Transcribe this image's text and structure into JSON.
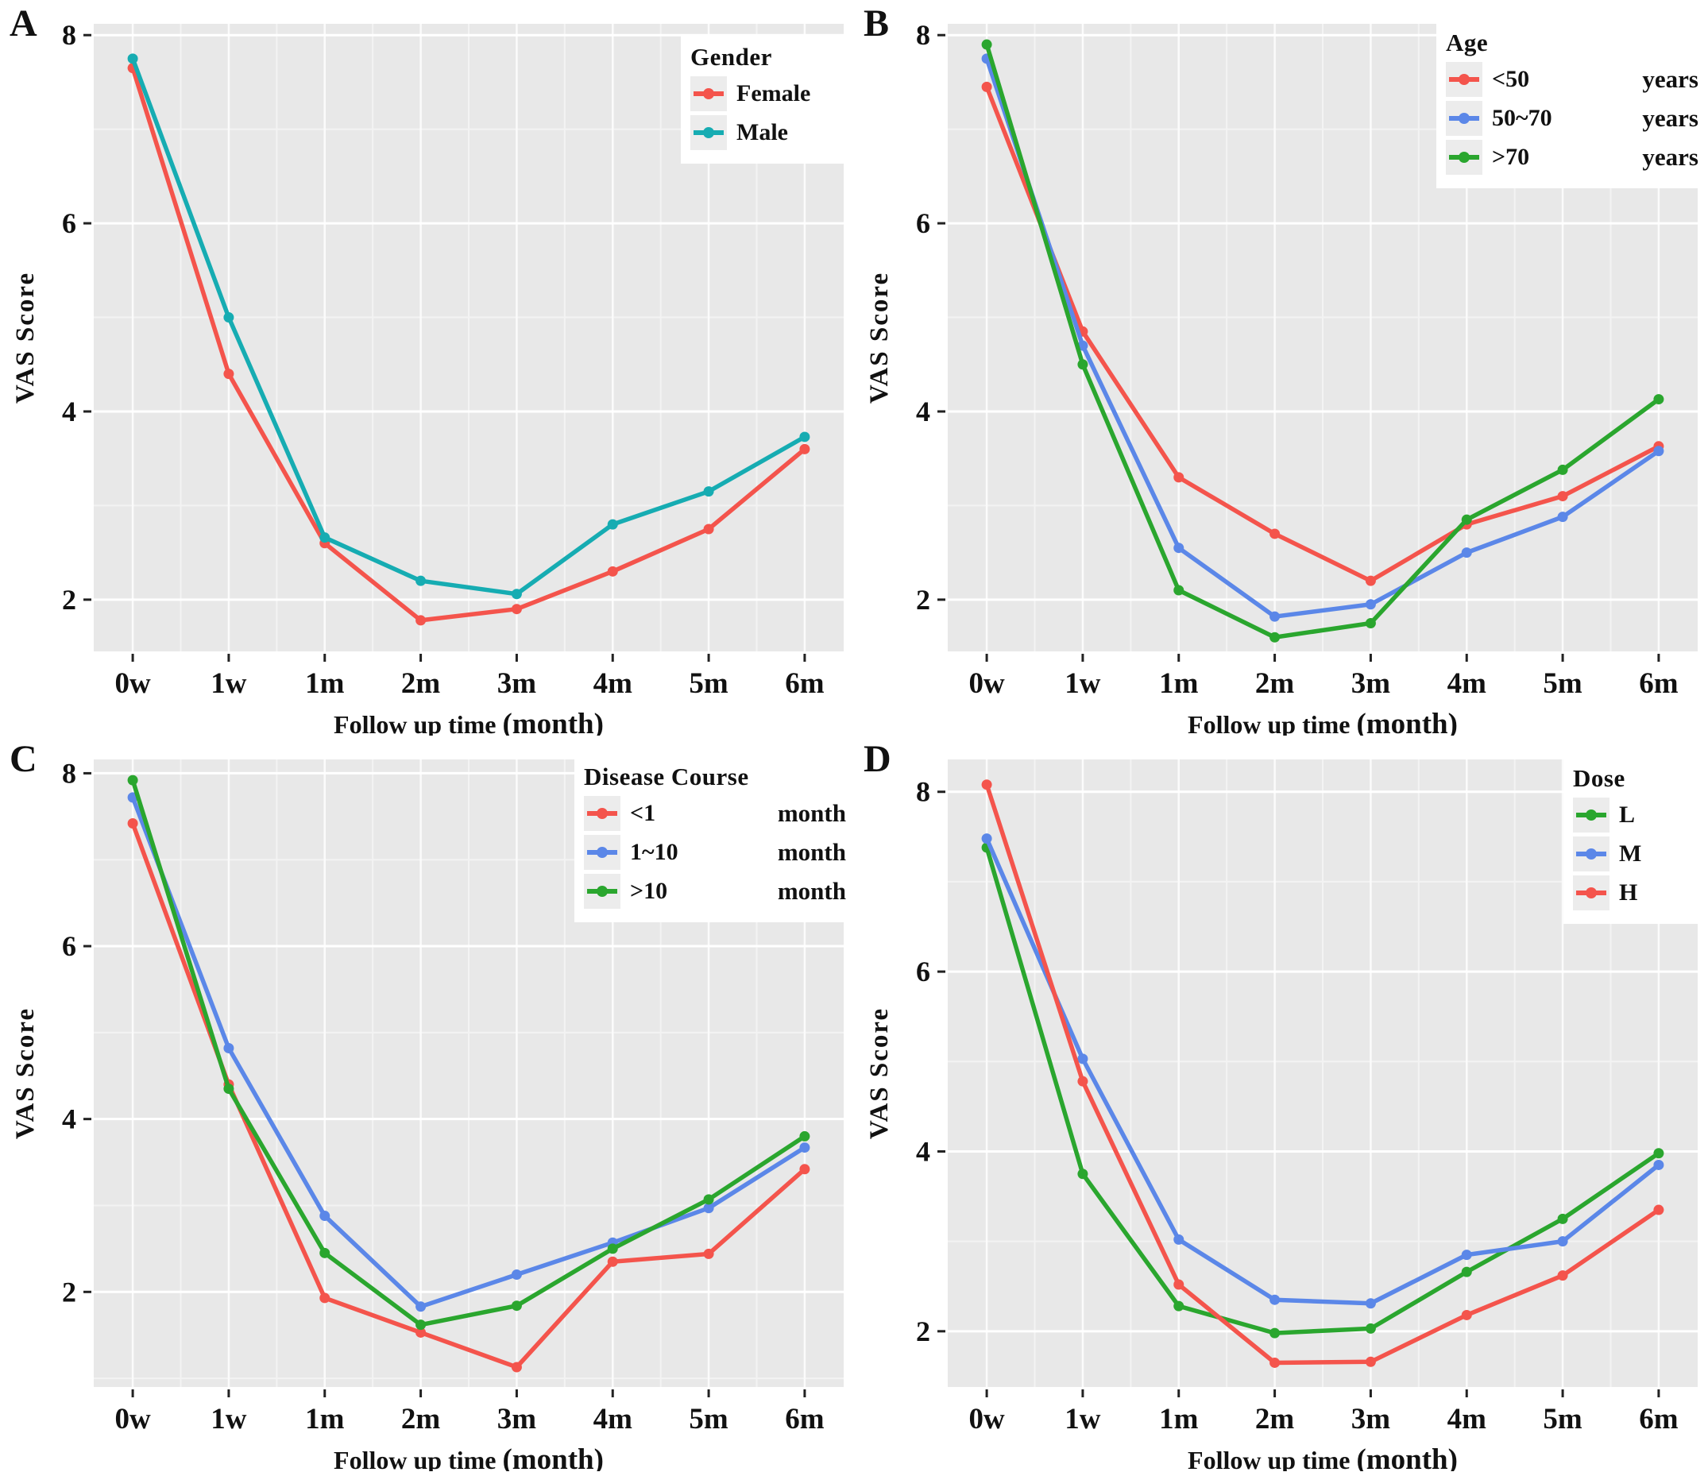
{
  "chart_data": [
    {
      "type": "line",
      "panel_label": "A",
      "legend_title": "Gender",
      "categories": [
        "0w",
        "1w",
        "1m",
        "2m",
        "3m",
        "4m",
        "5m",
        "6m"
      ],
      "xlabel": "Follow up time",
      "xlabel_unit": "(month)",
      "ylabel": "VAS Score",
      "y_ticks": [
        2,
        4,
        6,
        8
      ],
      "y_minor_ticks": [
        1,
        3,
        5,
        7
      ],
      "ylim": [
        1.45,
        8.12
      ],
      "grid": true,
      "legend_position": "top-right",
      "series": [
        {
          "name": "Female",
          "unit": "",
          "color": "#F4544C",
          "values": [
            7.65,
            4.4,
            2.6,
            1.78,
            1.9,
            2.3,
            2.75,
            3.6
          ]
        },
        {
          "name": "Male",
          "unit": "",
          "color": "#16ACB2",
          "values": [
            7.75,
            5.0,
            2.66,
            2.2,
            2.06,
            2.8,
            3.15,
            3.73
          ]
        }
      ]
    },
    {
      "type": "line",
      "panel_label": "B",
      "legend_title": "Age",
      "categories": [
        "0w",
        "1w",
        "1m",
        "2m",
        "3m",
        "4m",
        "5m",
        "6m"
      ],
      "xlabel": "Follow up time",
      "xlabel_unit": "(month)",
      "ylabel": "VAS Score",
      "y_ticks": [
        2,
        4,
        6,
        8
      ],
      "y_minor_ticks": [
        1,
        3,
        5,
        7
      ],
      "ylim": [
        1.45,
        8.12
      ],
      "grid": true,
      "legend_position": "top-right",
      "series": [
        {
          "name": "<50",
          "unit": "years",
          "color": "#F4544C",
          "values": [
            7.45,
            4.85,
            3.3,
            2.7,
            2.2,
            2.8,
            3.1,
            3.63
          ]
        },
        {
          "name": "50~70",
          "unit": "years",
          "color": "#5B87E8",
          "values": [
            7.75,
            4.7,
            2.55,
            1.82,
            1.95,
            2.5,
            2.88,
            3.58
          ]
        },
        {
          "name": ">70",
          "unit": "years",
          "color": "#2AA62E",
          "values": [
            7.9,
            4.5,
            2.1,
            1.6,
            1.75,
            2.85,
            3.38,
            4.13
          ]
        }
      ]
    },
    {
      "type": "line",
      "panel_label": "C",
      "legend_title": "Disease Course",
      "categories": [
        "0w",
        "1w",
        "1m",
        "2m",
        "3m",
        "4m",
        "5m",
        "6m"
      ],
      "xlabel": "Follow up time",
      "xlabel_unit": "(month)",
      "ylabel": "VAS Score",
      "y_ticks": [
        2,
        4,
        6,
        8
      ],
      "y_minor_ticks": [
        1,
        3,
        5,
        7
      ],
      "ylim": [
        0.9,
        8.16
      ],
      "grid": true,
      "legend_position": "top-right",
      "series": [
        {
          "name": "<1",
          "unit": "month",
          "color": "#F4544C",
          "values": [
            7.42,
            4.4,
            1.93,
            1.53,
            1.13,
            2.35,
            2.44,
            3.42
          ]
        },
        {
          "name": "1~10",
          "unit": "month",
          "color": "#5B87E8",
          "values": [
            7.72,
            4.82,
            2.88,
            1.83,
            2.2,
            2.57,
            2.97,
            3.67
          ]
        },
        {
          "name": ">10",
          "unit": "month",
          "color": "#2AA62E",
          "values": [
            7.92,
            4.35,
            2.45,
            1.62,
            1.84,
            2.5,
            3.07,
            3.8
          ]
        }
      ]
    },
    {
      "type": "line",
      "panel_label": "D",
      "legend_title": "Dose",
      "categories": [
        "0w",
        "1w",
        "1m",
        "2m",
        "3m",
        "4m",
        "5m",
        "6m"
      ],
      "xlabel": "Follow up time",
      "xlabel_unit": "(month)",
      "ylabel": "VAS Score",
      "y_ticks": [
        2,
        4,
        6,
        8
      ],
      "y_minor_ticks": [
        1,
        3,
        5,
        7
      ],
      "ylim": [
        1.38,
        8.36
      ],
      "grid": true,
      "legend_position": "top-right",
      "series": [
        {
          "name": "L",
          "unit": "",
          "color": "#2AA62E",
          "values": [
            7.38,
            3.75,
            2.28,
            1.98,
            2.03,
            2.66,
            3.25,
            3.98
          ]
        },
        {
          "name": "M",
          "unit": "",
          "color": "#5B87E8",
          "values": [
            7.48,
            5.03,
            3.02,
            2.35,
            2.31,
            2.85,
            3.0,
            3.85
          ]
        },
        {
          "name": "H",
          "unit": "",
          "color": "#F4544C",
          "values": [
            8.08,
            4.78,
            2.52,
            1.65,
            1.66,
            2.18,
            2.62,
            3.35
          ]
        }
      ]
    }
  ],
  "style": {
    "panel_background": "#E8E8E8",
    "major_grid_color": "#FFFFFF",
    "minor_grid_color": "#F3F3F3",
    "tick_color": "#222222",
    "text_color": "#111111"
  }
}
